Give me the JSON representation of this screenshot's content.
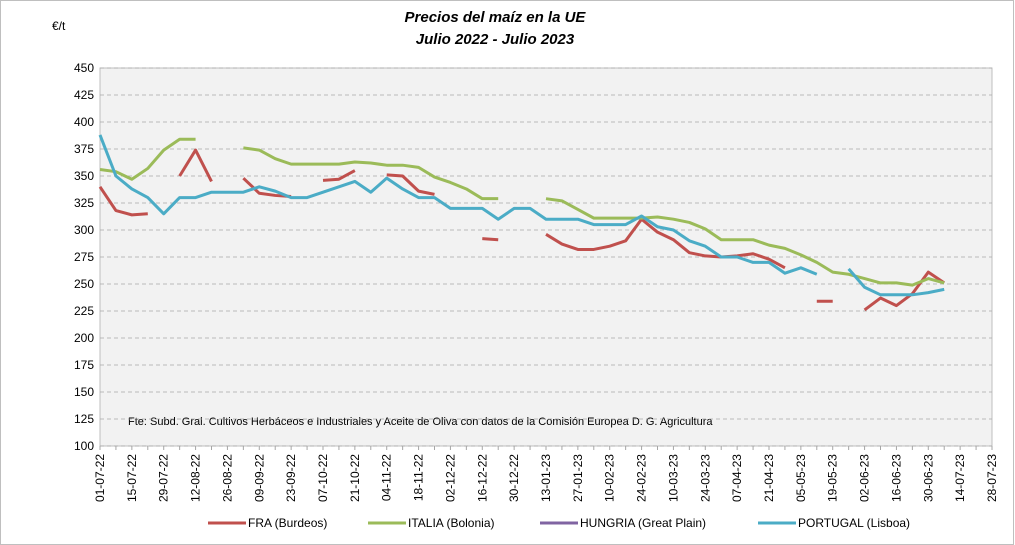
{
  "chart_data": {
    "type": "line",
    "title": "Precios del maíz en la UE",
    "subtitle": "Julio 2022 - Julio 2023",
    "y_label": "€/t",
    "annotation": "Fte: Subd. Gral. Cultivos Herbáceos e Industriales y Aceite de Oliva con datos de la Comisión Europea D. G. Agricultura",
    "categories": [
      "01-07-22",
      null,
      "15-07-22",
      null,
      "29-07-22",
      null,
      "12-08-22",
      null,
      "26-08-22",
      null,
      "09-09-22",
      null,
      "23-09-22",
      null,
      "07-10-22",
      null,
      "21-10-22",
      null,
      "04-11-22",
      null,
      "18-11-22",
      null,
      "02-12-22",
      null,
      "16-12-22",
      null,
      "30-12-22",
      null,
      "13-01-23",
      null,
      "27-01-23",
      null,
      "10-02-23",
      null,
      "24-02-23",
      null,
      "10-03-23",
      null,
      "24-03-23",
      null,
      "07-04-23",
      null,
      "21-04-23",
      null,
      "05-05-23",
      null,
      "19-05-23",
      null,
      "02-06-23",
      null,
      "16-06-23",
      null,
      "30-06-23",
      null,
      "14-07-23",
      null,
      "28-07-23"
    ],
    "series": [
      {
        "name": "FRA (Burdeos)",
        "color": "#c0504d",
        "values": [
          340,
          318,
          314,
          315,
          null,
          350,
          374,
          345,
          null,
          348,
          334,
          332,
          331,
          null,
          346,
          347,
          355,
          null,
          351,
          350,
          336,
          333,
          null,
          null,
          292,
          291,
          null,
          null,
          296,
          287,
          282,
          282,
          285,
          290,
          310,
          298,
          291,
          279,
          276,
          275,
          276,
          278,
          273,
          265,
          null,
          234,
          234,
          null,
          226,
          237,
          230,
          241,
          261,
          251,
          null,
          null,
          null
        ]
      },
      {
        "name": "ITALIA (Bolonia)",
        "color": "#9bbb59",
        "values": [
          356,
          354,
          347,
          357,
          374,
          384,
          384,
          null,
          null,
          376,
          374,
          366,
          361,
          361,
          361,
          361,
          363,
          362,
          360,
          360,
          358,
          349,
          344,
          338,
          329,
          329,
          null,
          null,
          329,
          327,
          319,
          311,
          311,
          311,
          311,
          312,
          310,
          307,
          301,
          291,
          291,
          291,
          286,
          283,
          277,
          270,
          261,
          259,
          255,
          251,
          251,
          249,
          255,
          251,
          null,
          null,
          null
        ]
      },
      {
        "name": "HUNGRIA (Great Plain)",
        "color": "#8064a2",
        "values": [
          null,
          null,
          null,
          null,
          null,
          null,
          null,
          null,
          null,
          null,
          null,
          null,
          null,
          null,
          null,
          null,
          null,
          null,
          null,
          null,
          null,
          null,
          null,
          null,
          null,
          null,
          null,
          null,
          null,
          null,
          null,
          null,
          null,
          null,
          null,
          null,
          null,
          null,
          null,
          null,
          null,
          null,
          null,
          null,
          null,
          null,
          null,
          null,
          null,
          null,
          null,
          null,
          null,
          null,
          null,
          null,
          null
        ]
      },
      {
        "name": "PORTUGAL (Lisboa)",
        "color": "#4bacc6",
        "values": [
          388,
          350,
          338,
          330,
          315,
          330,
          330,
          335,
          335,
          335,
          340,
          336,
          330,
          330,
          335,
          340,
          345,
          335,
          348,
          338,
          330,
          330,
          320,
          320,
          320,
          310,
          320,
          320,
          310,
          310,
          310,
          305,
          305,
          305,
          313,
          303,
          300,
          290,
          285,
          275,
          275,
          270,
          270,
          260,
          265,
          259,
          null,
          264,
          247,
          240,
          240,
          240,
          242,
          245,
          null,
          null,
          null
        ]
      }
    ],
    "ylim": [
      100,
      450
    ],
    "yticks": [
      100,
      125,
      150,
      175,
      200,
      225,
      250,
      275,
      300,
      325,
      350,
      375,
      400,
      425,
      450
    ],
    "grid": true
  }
}
